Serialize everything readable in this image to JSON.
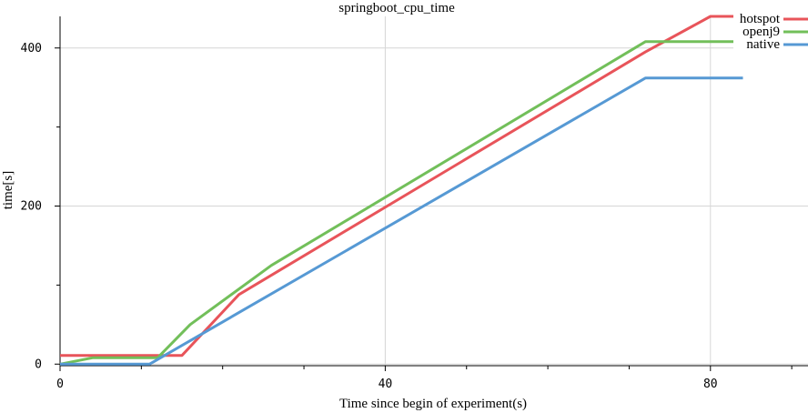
{
  "chart_data": {
    "type": "line",
    "title": "springboot_cpu_time",
    "xlabel": "Time since begin of experiment(s)",
    "ylabel": "time[s]",
    "xlim": [
      0,
      92
    ],
    "ylim": [
      -2,
      440
    ],
    "x_ticks": [
      0,
      40,
      80
    ],
    "y_ticks": [
      0,
      200,
      400
    ],
    "x_minor_step": 10,
    "y_minor_step": 100,
    "grid": true,
    "legend_position": "top-right",
    "series": [
      {
        "name": "hotspot",
        "color": "#e8545a",
        "points": [
          [
            0,
            11
          ],
          [
            15,
            11
          ],
          [
            22,
            88
          ],
          [
            72,
            395
          ],
          [
            80,
            440
          ],
          [
            92,
            440
          ]
        ]
      },
      {
        "name": "openj9",
        "color": "#72bf5a",
        "points": [
          [
            0,
            0
          ],
          [
            4,
            8
          ],
          [
            12,
            8
          ],
          [
            16,
            50
          ],
          [
            26,
            125
          ],
          [
            72,
            408
          ],
          [
            84,
            408
          ]
        ]
      },
      {
        "name": "native",
        "color": "#5699d4",
        "points": [
          [
            0,
            0
          ],
          [
            11,
            0
          ],
          [
            72,
            362
          ],
          [
            84,
            362
          ]
        ]
      }
    ]
  }
}
